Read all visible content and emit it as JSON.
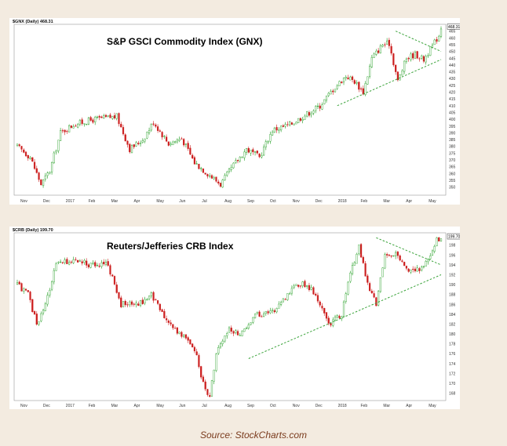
{
  "source": "Source: StockCharts.com",
  "chart_data": [
    {
      "type": "candlestick",
      "header": "$GNX (Daily) 468.31",
      "title": "S&P GSCI Commodity Index (GNX)",
      "last_value_label": "468.31",
      "ylim": [
        344,
        470
      ],
      "y_ticks": [
        350,
        355,
        360,
        365,
        370,
        375,
        380,
        385,
        390,
        395,
        400,
        405,
        410,
        415,
        420,
        425,
        430,
        435,
        440,
        445,
        450,
        455,
        460,
        465
      ],
      "x_ticks": [
        "Nov",
        "Dec",
        "2017",
        "Feb",
        "Mar",
        "Apr",
        "May",
        "Jun",
        "Jul",
        "Aug",
        "Sep",
        "Oct",
        "Nov",
        "Dec",
        "2018",
        "Feb",
        "Mar",
        "Apr",
        "May"
      ],
      "price_path": [
        [
          0,
          380
        ],
        [
          6,
          372
        ],
        [
          11,
          352
        ],
        [
          15,
          362
        ],
        [
          20,
          390
        ],
        [
          26,
          396
        ],
        [
          36,
          400
        ],
        [
          46,
          402
        ],
        [
          52,
          378
        ],
        [
          58,
          385
        ],
        [
          63,
          398
        ],
        [
          70,
          382
        ],
        [
          76,
          386
        ],
        [
          82,
          368
        ],
        [
          88,
          360
        ],
        [
          94,
          352
        ],
        [
          100,
          366
        ],
        [
          106,
          378
        ],
        [
          112,
          372
        ],
        [
          118,
          392
        ],
        [
          126,
          396
        ],
        [
          134,
          404
        ],
        [
          140,
          410
        ],
        [
          146,
          422
        ],
        [
          152,
          432
        ],
        [
          156,
          428
        ],
        [
          160,
          420
        ],
        [
          164,
          445
        ],
        [
          169,
          455
        ],
        [
          172,
          456
        ],
        [
          176,
          428
        ],
        [
          180,
          445
        ],
        [
          184,
          448
        ],
        [
          188,
          444
        ],
        [
          192,
          454
        ],
        [
          195,
          462
        ],
        [
          196,
          468
        ]
      ],
      "color_up": "#1a9a1a",
      "color_down": "#cc1f1f",
      "trendlines": [
        {
          "from": [
            175,
            465
          ],
          "to": [
            196,
            450
          ]
        },
        {
          "from": [
            148,
            410
          ],
          "to": [
            196,
            444
          ]
        }
      ],
      "trendline_color": "#3aa33a"
    },
    {
      "type": "candlestick",
      "header": "$CRB (Daily) 199.70",
      "title": "Reuters/Jefferies CRB Index",
      "last_value_label": "199.70",
      "ylim": [
        166.5,
        200.5
      ],
      "y_ticks": [
        168,
        170,
        172,
        174,
        176,
        178,
        180,
        182,
        184,
        186,
        188,
        190,
        192,
        194,
        196,
        198
      ],
      "x_ticks": [
        "Nov",
        "Dec",
        "2017",
        "Feb",
        "Mar",
        "Apr",
        "May",
        "Jun",
        "Jul",
        "Aug",
        "Sep",
        "Oct",
        "Nov",
        "Dec",
        "2018",
        "Feb",
        "Mar",
        "Apr",
        "May"
      ],
      "price_path": [
        [
          0,
          190
        ],
        [
          5,
          188
        ],
        [
          9,
          182
        ],
        [
          13,
          186
        ],
        [
          18,
          194
        ],
        [
          26,
          195
        ],
        [
          34,
          194
        ],
        [
          42,
          194
        ],
        [
          48,
          186
        ],
        [
          56,
          186
        ],
        [
          62,
          188
        ],
        [
          70,
          182
        ],
        [
          76,
          180
        ],
        [
          82,
          177
        ],
        [
          86,
          170
        ],
        [
          89,
          167
        ],
        [
          92,
          176
        ],
        [
          98,
          181
        ],
        [
          104,
          180
        ],
        [
          110,
          184
        ],
        [
          116,
          184
        ],
        [
          122,
          186
        ],
        [
          128,
          190
        ],
        [
          134,
          190
        ],
        [
          138,
          188
        ],
        [
          144,
          182
        ],
        [
          150,
          184
        ],
        [
          154,
          192
        ],
        [
          158,
          198
        ],
        [
          162,
          190
        ],
        [
          166,
          186
        ],
        [
          170,
          196
        ],
        [
          176,
          196
        ],
        [
          180,
          193
        ],
        [
          186,
          193
        ],
        [
          190,
          195
        ],
        [
          194,
          199
        ],
        [
          196,
          199.7
        ]
      ],
      "color_up": "#1a9a1a",
      "color_down": "#cc1f1f",
      "trendlines": [
        {
          "from": [
            166,
            199.5
          ],
          "to": [
            196,
            194
          ]
        },
        {
          "from": [
            107,
            175
          ],
          "to": [
            196,
            192
          ]
        }
      ],
      "trendline_color": "#3aa33a"
    }
  ]
}
